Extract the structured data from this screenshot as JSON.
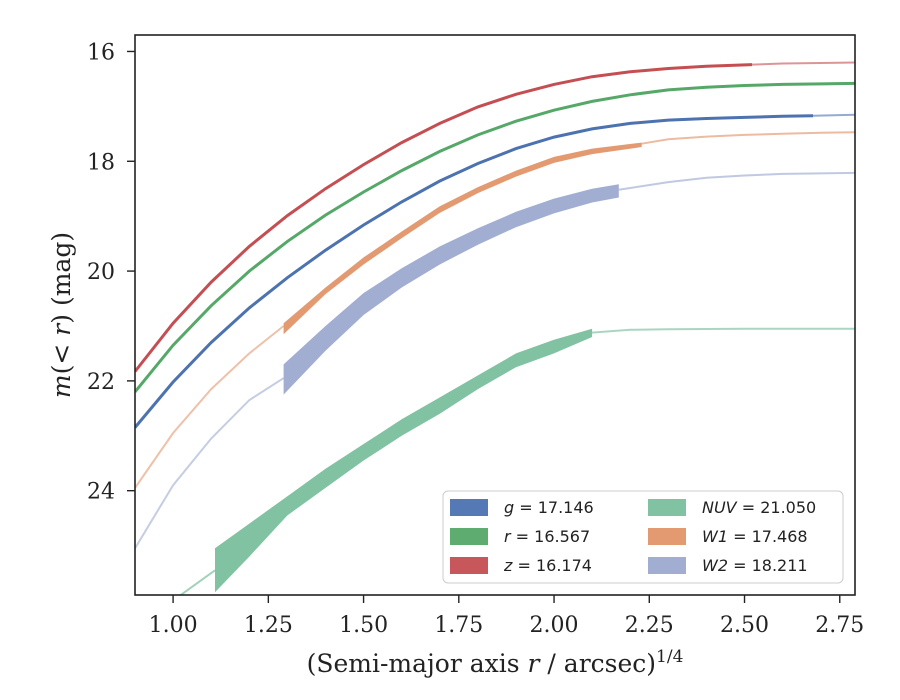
{
  "chart_data": {
    "type": "line",
    "title": "",
    "xlabel": "(Semi-major axis r / arcsec)",
    "xlabel_main": "(Semi-major axis ",
    "xlabel_var": "r",
    "xlabel_tail": " / arcsec)",
    "xlabel_sup": "1/4",
    "ylabel_m": "m",
    "ylabel_open": "(",
    "ylabel_lt": "< ",
    "ylabel_r": "r",
    "ylabel_close": ") (mag)",
    "xlim": [
      0.9,
      2.79
    ],
    "ylim": [
      25.9,
      15.7
    ],
    "y_inverted": true,
    "xticks": [
      1.0,
      1.25,
      1.5,
      1.75,
      2.0,
      2.25,
      2.5,
      2.75
    ],
    "xtick_labels": [
      "1.00",
      "1.25",
      "1.50",
      "1.75",
      "2.00",
      "2.25",
      "2.50",
      "2.75"
    ],
    "yticks": [
      16,
      18,
      20,
      22,
      24
    ],
    "ytick_labels": [
      "16",
      "18",
      "20",
      "22",
      "24"
    ],
    "grid": false,
    "legend_placement": "lower-right",
    "series": [
      {
        "key": "g",
        "var": "g",
        "label": "= 17.146",
        "color": "#4c72b0",
        "x": [
          0.9,
          1.0,
          1.1,
          1.2,
          1.3,
          1.4,
          1.5,
          1.6,
          1.7,
          1.8,
          1.9,
          2.0,
          2.1,
          2.2,
          2.3,
          2.4,
          2.5,
          2.6,
          2.68,
          2.8
        ],
        "y": [
          22.85,
          22.02,
          21.3,
          20.67,
          20.12,
          19.62,
          19.16,
          18.74,
          18.36,
          18.04,
          17.77,
          17.56,
          17.41,
          17.31,
          17.25,
          17.22,
          17.2,
          17.18,
          17.17,
          17.15
        ],
        "solid_end": 2.68,
        "band": 0.04
      },
      {
        "key": "r",
        "var": "r",
        "label": "= 16.567",
        "color": "#55a868",
        "x": [
          0.9,
          1.0,
          1.1,
          1.2,
          1.3,
          1.4,
          1.5,
          1.6,
          1.7,
          1.8,
          1.9,
          2.0,
          2.1,
          2.2,
          2.3,
          2.4,
          2.5,
          2.6,
          2.7,
          2.8
        ],
        "y": [
          22.2,
          21.35,
          20.63,
          20.0,
          19.46,
          18.98,
          18.56,
          18.17,
          17.82,
          17.52,
          17.27,
          17.07,
          16.91,
          16.79,
          16.7,
          16.65,
          16.62,
          16.6,
          16.59,
          16.58
        ],
        "solid_end": 2.8,
        "band": 0.05
      },
      {
        "key": "z",
        "var": "z",
        "label": "= 16.174",
        "color": "#c44e52",
        "x": [
          0.9,
          1.0,
          1.1,
          1.2,
          1.3,
          1.4,
          1.5,
          1.6,
          1.7,
          1.8,
          1.9,
          2.0,
          2.1,
          2.2,
          2.3,
          2.4,
          2.52,
          2.6,
          2.7,
          2.8
        ],
        "y": [
          21.83,
          20.95,
          20.2,
          19.55,
          18.99,
          18.5,
          18.06,
          17.66,
          17.31,
          17.01,
          16.78,
          16.6,
          16.46,
          16.37,
          16.31,
          16.27,
          16.24,
          16.22,
          16.21,
          16.2
        ],
        "solid_end": 2.52,
        "band": 0.05
      },
      {
        "key": "NUV",
        "var": "NUV",
        "label": "= 21.050",
        "color": "#64b48e",
        "x": [
          1.11,
          1.2,
          1.3,
          1.4,
          1.5,
          1.6,
          1.7,
          1.8,
          1.9,
          2.0,
          2.1,
          2.2,
          2.3,
          2.4,
          2.5,
          2.6,
          2.7,
          2.8
        ],
        "y": [
          25.45,
          24.95,
          24.4,
          23.85,
          23.35,
          22.9,
          22.45,
          22.05,
          21.65,
          21.35,
          21.12,
          21.07,
          21.06,
          21.055,
          21.05,
          21.05,
          21.05,
          21.05
        ],
        "band_x": [
          1.11,
          1.2,
          1.3,
          1.4,
          1.5,
          1.6,
          1.7,
          1.8,
          1.9,
          2.0,
          2.1
        ],
        "band_lo": [
          25.05,
          24.6,
          24.1,
          23.6,
          23.15,
          22.7,
          22.3,
          21.9,
          21.5,
          21.25,
          21.05
        ],
        "band_hi": [
          25.85,
          25.2,
          24.45,
          23.95,
          23.45,
          23.0,
          22.6,
          22.15,
          21.75,
          21.5,
          21.2
        ],
        "faint_start_x": [
          0.9,
          1.0,
          1.11
        ],
        "faint_start_y": [
          26.6,
          26.0,
          25.45
        ]
      },
      {
        "key": "W1",
        "var": "W1",
        "label": "= 17.468",
        "color": "#dd8452",
        "x": [
          0.9,
          1.0,
          1.1,
          1.2,
          1.29,
          1.4,
          1.5,
          1.6,
          1.7,
          1.8,
          1.9,
          2.0,
          2.1,
          2.23,
          2.3,
          2.4,
          2.5,
          2.6,
          2.7,
          2.8
        ],
        "y": [
          23.95,
          22.95,
          22.15,
          21.5,
          21.0,
          20.3,
          19.8,
          19.3,
          18.85,
          18.5,
          18.2,
          17.95,
          17.8,
          17.68,
          17.6,
          17.55,
          17.52,
          17.5,
          17.48,
          17.47
        ],
        "band_x": [
          1.29,
          1.4,
          1.5,
          1.6,
          1.7,
          1.8,
          1.9,
          2.0,
          2.1,
          2.23
        ],
        "band_lo": [
          20.95,
          20.3,
          19.75,
          19.28,
          18.82,
          18.47,
          18.17,
          17.92,
          17.77,
          17.66
        ],
        "band_hi": [
          21.15,
          20.42,
          19.88,
          19.4,
          18.94,
          18.58,
          18.28,
          18.03,
          17.87,
          17.74
        ],
        "solid_start": 1.29,
        "solid_end": 2.23
      },
      {
        "key": "W2",
        "var": "W2",
        "label": "= 18.211",
        "color": "#8c9cc8",
        "x": [
          0.9,
          1.0,
          1.1,
          1.2,
          1.29,
          1.4,
          1.5,
          1.6,
          1.7,
          1.8,
          1.9,
          2.0,
          2.1,
          2.17,
          2.3,
          2.4,
          2.5,
          2.6,
          2.7,
          2.8
        ],
        "y": [
          25.05,
          23.9,
          23.05,
          22.35,
          21.95,
          21.2,
          20.6,
          20.1,
          19.7,
          19.35,
          19.05,
          18.8,
          18.62,
          18.52,
          18.38,
          18.3,
          18.26,
          18.23,
          18.22,
          18.21
        ],
        "band_x": [
          1.29,
          1.4,
          1.5,
          1.6,
          1.7,
          1.8,
          1.9,
          2.0,
          2.1,
          2.17
        ],
        "band_lo": [
          21.7,
          21.0,
          20.4,
          19.95,
          19.55,
          19.22,
          18.92,
          18.68,
          18.5,
          18.42
        ],
        "band_hi": [
          22.25,
          21.45,
          20.8,
          20.3,
          19.88,
          19.52,
          19.2,
          18.95,
          18.75,
          18.66
        ],
        "solid_start": 1.29,
        "solid_end": 2.17
      }
    ]
  }
}
